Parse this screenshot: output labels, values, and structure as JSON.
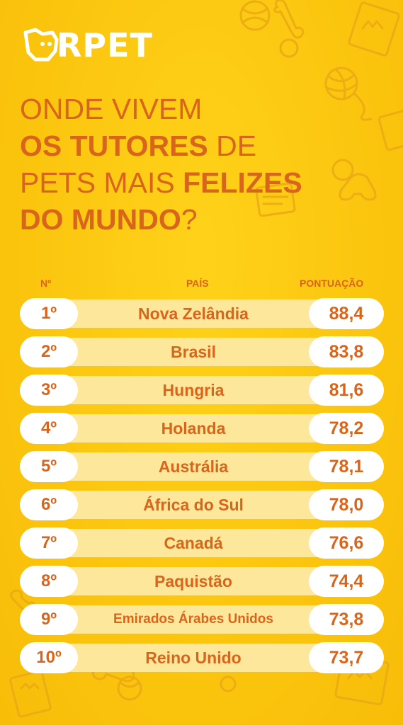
{
  "brand": {
    "name": "RPET",
    "logo_icon": "dog-head-icon"
  },
  "headline": {
    "line1": "ONDE VIVEM",
    "line2_bold": "OS TUTORES",
    "line2_rest": " DE",
    "line3_normal": "PETS MAIS ",
    "line3_bold": "FELIZES",
    "line4_bold": "DO MUNDO",
    "line4_rest": "?"
  },
  "table": {
    "headers": {
      "rank": "Nº",
      "country": "PAÍS",
      "score": "PONTUAÇÃO"
    },
    "rows": [
      {
        "rank": "1º",
        "country": "Nova Zelândia",
        "score": "88,4"
      },
      {
        "rank": "2º",
        "country": "Brasil",
        "score": "83,8"
      },
      {
        "rank": "3º",
        "country": "Hungria",
        "score": "81,6"
      },
      {
        "rank": "4º",
        "country": "Holanda",
        "score": "78,2"
      },
      {
        "rank": "5º",
        "country": "Austrália",
        "score": "78,1"
      },
      {
        "rank": "6º",
        "country": "África do Sul",
        "score": "78,0"
      },
      {
        "rank": "7º",
        "country": "Canadá",
        "score": "76,6"
      },
      {
        "rank": "8º",
        "country": "Paquistão",
        "score": "74,4"
      },
      {
        "rank": "9º",
        "country": "Emirados Árabes Unidos",
        "score": "73,8"
      },
      {
        "rank": "10º",
        "country": "Reino Unido",
        "score": "73,7"
      }
    ]
  },
  "colors": {
    "background": "#fbc50e",
    "accent": "#d9651c",
    "row_band": "#fde79a",
    "pill": "#ffffff",
    "decor": "#eba812"
  },
  "decor_icons": [
    "ball-icon",
    "bone-icon",
    "yarn-ball-icon",
    "paw-print-icon",
    "dog-frame-icon",
    "game-controller-icon"
  ]
}
